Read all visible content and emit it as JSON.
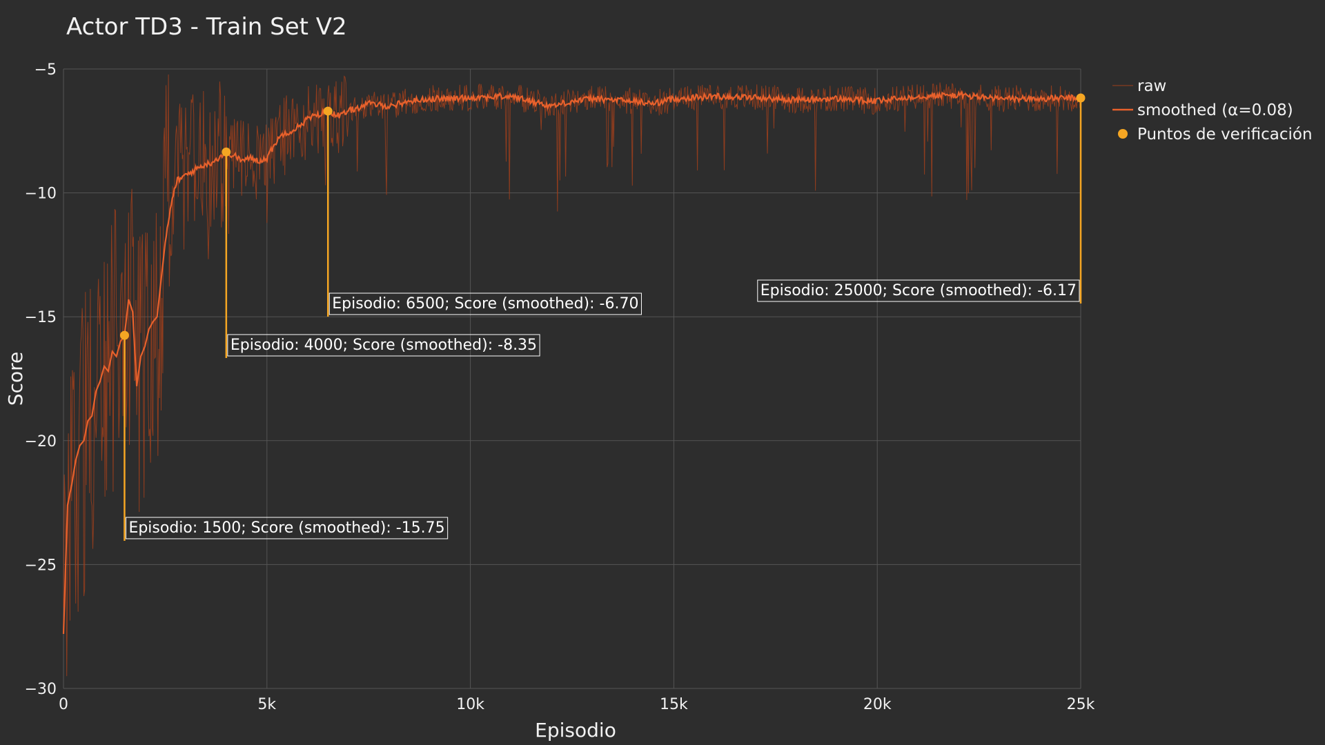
{
  "chart_data": {
    "type": "line",
    "title": "Actor TD3 - Train Set V2",
    "xlabel": "Episodio",
    "ylabel": "Score",
    "xlim": [
      0,
      25000
    ],
    "ylim": [
      -30,
      -5
    ],
    "x_ticks": [
      0,
      5000,
      10000,
      15000,
      20000,
      25000
    ],
    "x_tick_labels": [
      "0",
      "5k",
      "10k",
      "15k",
      "20k",
      "25k"
    ],
    "y_ticks": [
      -30,
      -25,
      -20,
      -15,
      -10,
      -5
    ],
    "y_tick_labels": [
      "−30",
      "−25",
      "−20",
      "−15",
      "−10",
      "−5"
    ],
    "grid": true,
    "legend_position": "top-right",
    "series": [
      {
        "name": "raw",
        "type": "line",
        "color": "#a0401c",
        "description_points": {
          "x": [
            0,
            500,
            1000,
            1500,
            2000,
            2500,
            3000,
            3500,
            4000,
            5000,
            6000,
            7000,
            8000,
            10000,
            12000,
            15000,
            18000,
            20000,
            22000,
            25000
          ],
          "y": [
            -27.8,
            -21,
            -18,
            -16,
            -15,
            -12,
            -9.3,
            -8.8,
            -8.4,
            -8.5,
            -7.2,
            -6.4,
            -6.3,
            -6.1,
            -6.3,
            -6.2,
            -6.2,
            -6.3,
            -6.1,
            -6.2
          ]
        }
      },
      {
        "name": "smoothed (α=0.08)",
        "type": "line",
        "color": "#e8612c",
        "x": [
          0,
          100,
          200,
          300,
          400,
          500,
          600,
          700,
          800,
          900,
          1000,
          1100,
          1200,
          1300,
          1400,
          1500,
          1600,
          1700,
          1800,
          1900,
          2000,
          2100,
          2200,
          2300,
          2400,
          2500,
          2600,
          2700,
          2800,
          3000,
          3200,
          3400,
          3600,
          3800,
          4000,
          4200,
          4400,
          4600,
          4800,
          5000,
          5200,
          5400,
          5600,
          5800,
          6000,
          6200,
          6500,
          6800,
          7000,
          7500,
          8000,
          8500,
          9000,
          9500,
          10000,
          11000,
          12000,
          12500,
          13000,
          14000,
          14500,
          15000,
          16000,
          17000,
          18000,
          19000,
          20000,
          21000,
          22000,
          23000,
          24000,
          25000
        ],
        "y": [
          -27.8,
          -22.6,
          -21.8,
          -20.8,
          -20.2,
          -20.0,
          -19.2,
          -19.0,
          -18.0,
          -17.6,
          -17.0,
          -17.2,
          -16.4,
          -16.6,
          -16.0,
          -15.75,
          -14.3,
          -14.8,
          -17.8,
          -16.6,
          -16.2,
          -15.5,
          -15.2,
          -15.0,
          -13.5,
          -12.0,
          -11.0,
          -10.0,
          -9.5,
          -9.3,
          -9.1,
          -8.9,
          -8.8,
          -8.6,
          -8.35,
          -8.5,
          -8.7,
          -8.6,
          -8.7,
          -8.6,
          -8.0,
          -7.6,
          -7.5,
          -7.3,
          -7.0,
          -6.9,
          -6.7,
          -6.9,
          -6.7,
          -6.4,
          -6.5,
          -6.3,
          -6.2,
          -6.2,
          -6.15,
          -6.1,
          -6.5,
          -6.3,
          -6.2,
          -6.3,
          -6.4,
          -6.2,
          -6.1,
          -6.15,
          -6.25,
          -6.2,
          -6.3,
          -6.1,
          -6.05,
          -6.2,
          -6.2,
          -6.17
        ]
      },
      {
        "name": "Puntos de verificación",
        "type": "scatter",
        "color": "#f5a623",
        "x": [
          1500,
          4000,
          6500,
          25000
        ],
        "y": [
          -15.75,
          -8.35,
          -6.7,
          -6.17
        ]
      }
    ],
    "annotations": [
      {
        "x": 1500,
        "y": -15.75,
        "text": "Episodio: 1500; Score (smoothed): -15.75"
      },
      {
        "x": 4000,
        "y": -8.35,
        "text": "Episodio: 4000; Score (smoothed): -8.35"
      },
      {
        "x": 6500,
        "y": -6.7,
        "text": "Episodio: 6500; Score (smoothed): -6.70"
      },
      {
        "x": 25000,
        "y": -6.17,
        "text": "Episodio: 25000; Score (smoothed): -6.17"
      }
    ]
  }
}
